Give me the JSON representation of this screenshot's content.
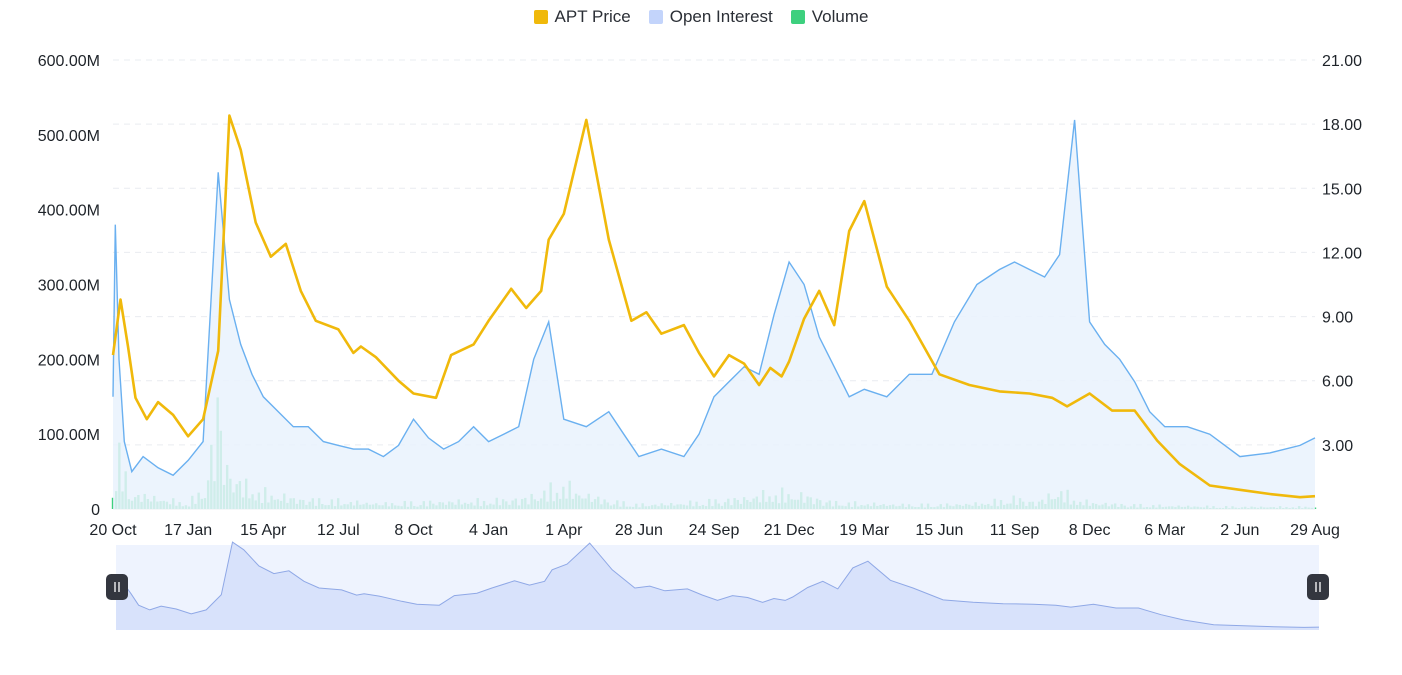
{
  "legend": [
    {
      "label": "APT Price",
      "color": "#F0B90B"
    },
    {
      "label": "Open Interest",
      "color": "#C3D4FB"
    },
    {
      "label": "Volume",
      "color": "#3DD07E"
    }
  ],
  "chart_data": {
    "type": "line",
    "x_tick_labels": [
      "20 Oct",
      "17 Jan",
      "15 Apr",
      "12 Jul",
      "8 Oct",
      "4 Jan",
      "1 Apr",
      "28 Jun",
      "24 Sep",
      "21 Dec",
      "19 Mar",
      "15 Jun",
      "11 Sep",
      "8 Dec",
      "6 Mar",
      "2 Jun",
      "29 Aug"
    ],
    "y_left": {
      "ticks": [
        "0",
        "100.00M",
        "200.00M",
        "300.00M",
        "400.00M",
        "500.00M",
        "600.00M"
      ],
      "ylim": [
        0,
        600000000
      ]
    },
    "y_right": {
      "ticks": [
        "3.00",
        "6.00",
        "9.00",
        "12.00",
        "15.00",
        "18.00",
        "21.00"
      ],
      "ylim": [
        0,
        21
      ]
    },
    "grid": true,
    "legend_position": "top-center",
    "series": [
      {
        "name": "APT Price",
        "axis": "right",
        "color": "#F0B90B",
        "x_index": [
          0,
          0.1,
          0.2,
          0.3,
          0.45,
          0.6,
          0.8,
          1.0,
          1.2,
          1.4,
          1.55,
          1.7,
          1.9,
          2.1,
          2.3,
          2.5,
          2.7,
          3.0,
          3.2,
          3.3,
          3.5,
          3.8,
          4.0,
          4.3,
          4.5,
          4.8,
          5.0,
          5.3,
          5.5,
          5.7,
          5.8,
          6.0,
          6.3,
          6.6,
          6.9,
          7.1,
          7.3,
          7.6,
          7.8,
          8.0,
          8.2,
          8.4,
          8.6,
          8.75,
          8.9,
          9.0,
          9.2,
          9.4,
          9.6,
          9.8,
          10.0,
          10.3,
          10.6,
          11.0,
          11.4,
          11.8,
          12.2,
          12.5,
          12.7,
          13.0,
          13.3,
          13.6,
          13.9,
          14.2,
          14.6,
          15.0,
          15.4,
          15.8,
          16.0
        ],
        "values": [
          7.2,
          9.8,
          7.6,
          5.2,
          4.2,
          5.0,
          4.4,
          3.4,
          4.2,
          7.4,
          18.4,
          16.8,
          13.4,
          11.8,
          12.4,
          10.2,
          8.8,
          8.4,
          7.3,
          7.6,
          7.1,
          6.0,
          5.4,
          5.2,
          7.2,
          7.7,
          8.8,
          10.3,
          9.4,
          10.2,
          12.6,
          13.8,
          18.2,
          12.6,
          8.8,
          9.2,
          8.2,
          8.6,
          7.3,
          6.2,
          7.2,
          6.8,
          5.8,
          6.6,
          6.2,
          6.9,
          8.9,
          10.2,
          8.6,
          13.0,
          14.4,
          10.4,
          8.8,
          6.3,
          5.8,
          5.5,
          5.4,
          5.2,
          4.8,
          5.4,
          4.6,
          4.6,
          3.2,
          2.1,
          1.1,
          0.9,
          0.7,
          0.55,
          0.6
        ]
      },
      {
        "name": "Open Interest",
        "axis": "left",
        "color": "#6AB0F0",
        "x_index": [
          0,
          0.03,
          0.08,
          0.15,
          0.25,
          0.4,
          0.6,
          0.8,
          1.0,
          1.2,
          1.4,
          1.55,
          1.7,
          1.85,
          2.0,
          2.2,
          2.4,
          2.6,
          2.8,
          3.0,
          3.2,
          3.4,
          3.6,
          3.8,
          4.0,
          4.2,
          4.4,
          4.6,
          4.8,
          5.0,
          5.2,
          5.4,
          5.6,
          5.8,
          6.0,
          6.3,
          6.6,
          6.8,
          7.0,
          7.3,
          7.6,
          7.8,
          8.0,
          8.2,
          8.4,
          8.6,
          8.8,
          9.0,
          9.2,
          9.4,
          9.6,
          9.8,
          10.0,
          10.3,
          10.6,
          10.9,
          11.2,
          11.5,
          11.8,
          12.0,
          12.2,
          12.4,
          12.6,
          12.8,
          13.0,
          13.2,
          13.4,
          13.6,
          13.8,
          14.0,
          14.3,
          14.6,
          15.0,
          15.4,
          15.8,
          16.0
        ],
        "values": [
          150000000,
          380000000,
          200000000,
          90000000,
          50000000,
          70000000,
          55000000,
          45000000,
          65000000,
          90000000,
          450000000,
          280000000,
          220000000,
          180000000,
          150000000,
          130000000,
          110000000,
          110000000,
          90000000,
          85000000,
          80000000,
          80000000,
          70000000,
          85000000,
          120000000,
          95000000,
          80000000,
          90000000,
          110000000,
          90000000,
          100000000,
          110000000,
          200000000,
          250000000,
          120000000,
          110000000,
          130000000,
          100000000,
          70000000,
          80000000,
          70000000,
          100000000,
          150000000,
          170000000,
          190000000,
          180000000,
          260000000,
          330000000,
          300000000,
          230000000,
          190000000,
          150000000,
          160000000,
          150000000,
          180000000,
          180000000,
          250000000,
          300000000,
          320000000,
          330000000,
          320000000,
          310000000,
          340000000,
          520000000,
          250000000,
          220000000,
          200000000,
          170000000,
          130000000,
          110000000,
          110000000,
          100000000,
          70000000,
          75000000,
          85000000,
          95000000
        ]
      },
      {
        "name": "Volume",
        "axis": "left",
        "color": "#3DD07E",
        "x_index": [
          0,
          0.1,
          0.2,
          0.4,
          0.8,
          1.0,
          1.1,
          1.2,
          1.3,
          1.4,
          1.5,
          1.6,
          1.8,
          2.0,
          2.2,
          2.5,
          3.0,
          3.3,
          3.6,
          4.0,
          4.5,
          5.0,
          5.5,
          5.8,
          6.0,
          6.2,
          6.6,
          7.0,
          7.5,
          8.0,
          8.4,
          8.6,
          8.8,
          9.0,
          9.2,
          9.6,
          10.0,
          10.5,
          11.0,
          11.5,
          11.8,
          12.0,
          12.3,
          12.6,
          12.8,
          13.0,
          13.5,
          14.0,
          14.5,
          15.0,
          15.5,
          16.0
        ],
        "values": [
          60000000,
          110000000,
          30000000,
          25000000,
          15000000,
          10000000,
          25000000,
          30000000,
          95000000,
          200000000,
          80000000,
          60000000,
          40000000,
          30000000,
          25000000,
          18000000,
          15000000,
          12000000,
          10000000,
          12000000,
          14000000,
          15000000,
          20000000,
          35000000,
          45000000,
          30000000,
          15000000,
          8000000,
          10000000,
          15000000,
          20000000,
          25000000,
          30000000,
          28000000,
          25000000,
          12000000,
          10000000,
          8000000,
          8000000,
          10000000,
          15000000,
          20000000,
          12000000,
          35000000,
          18000000,
          12000000,
          8000000,
          6000000,
          5000000,
          4000000,
          4000000,
          4000000
        ]
      }
    ]
  }
}
